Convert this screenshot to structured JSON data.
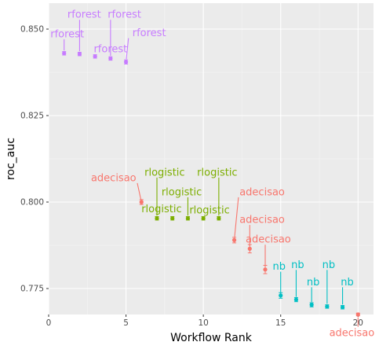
{
  "chart_data": {
    "type": "scatter",
    "title": "",
    "xlabel": "Workflow Rank",
    "ylabel": "roc_auc",
    "xlim": [
      0,
      21
    ],
    "ylim": [
      0.7675,
      0.8575
    ],
    "grid": true,
    "legend": "none",
    "x_ticks": [
      0,
      5,
      10,
      15,
      20
    ],
    "y_ticks": [
      0.775,
      0.8,
      0.825,
      0.85
    ],
    "y_tick_labels": [
      "0.775",
      "0.800",
      "0.825",
      "0.850"
    ],
    "colors": {
      "rforest": "#C77CFF",
      "rlogistic": "#7CAE00",
      "adecisao": "#F8766D",
      "nb": "#00BFC4"
    },
    "points": [
      {
        "rank": 1,
        "roc_auc": 0.843,
        "se": 0.0005,
        "model": "rforest"
      },
      {
        "rank": 2,
        "roc_auc": 0.8428,
        "se": 0.0005,
        "model": "rforest"
      },
      {
        "rank": 3,
        "roc_auc": 0.8421,
        "se": 0.0005,
        "model": "rforest"
      },
      {
        "rank": 4,
        "roc_auc": 0.8415,
        "se": 0.0005,
        "model": "rforest"
      },
      {
        "rank": 5,
        "roc_auc": 0.8405,
        "se": 0.0006,
        "model": "rforest"
      },
      {
        "rank": 6,
        "roc_auc": 0.8,
        "se": 0.0007,
        "model": "adecisao"
      },
      {
        "rank": 7,
        "roc_auc": 0.7953,
        "se": 0.0005,
        "model": "rlogistic"
      },
      {
        "rank": 8,
        "roc_auc": 0.7953,
        "se": 0.0005,
        "model": "rlogistic"
      },
      {
        "rank": 9,
        "roc_auc": 0.7953,
        "se": 0.0005,
        "model": "rlogistic"
      },
      {
        "rank": 10,
        "roc_auc": 0.7953,
        "se": 0.0005,
        "model": "rlogistic"
      },
      {
        "rank": 11,
        "roc_auc": 0.7953,
        "se": 0.0005,
        "model": "rlogistic"
      },
      {
        "rank": 12,
        "roc_auc": 0.789,
        "se": 0.0008,
        "model": "adecisao"
      },
      {
        "rank": 13,
        "roc_auc": 0.7865,
        "se": 0.0012,
        "model": "adecisao"
      },
      {
        "rank": 14,
        "roc_auc": 0.7805,
        "se": 0.0012,
        "model": "adecisao"
      },
      {
        "rank": 15,
        "roc_auc": 0.773,
        "se": 0.0008,
        "model": "nb"
      },
      {
        "rank": 16,
        "roc_auc": 0.7718,
        "se": 0.0006,
        "model": "nb"
      },
      {
        "rank": 17,
        "roc_auc": 0.7703,
        "se": 0.0006,
        "model": "nb"
      },
      {
        "rank": 18,
        "roc_auc": 0.7698,
        "se": 0.0005,
        "model": "nb"
      },
      {
        "rank": 19,
        "roc_auc": 0.7696,
        "se": 0.0005,
        "model": "nb"
      },
      {
        "rank": 20,
        "roc_auc": 0.7675,
        "se": 0.0004,
        "model": "adecisao"
      }
    ],
    "labels": [
      {
        "text": "rforest",
        "rank": 1,
        "x": 1.2,
        "y": 0.8487,
        "color": "rforest"
      },
      {
        "text": "rforest",
        "rank": 2,
        "x": 2.3,
        "y": 0.8543,
        "color": "rforest"
      },
      {
        "text": "rforest",
        "rank": 3,
        "x": 4.0,
        "y": 0.8443,
        "color": "rforest"
      },
      {
        "text": "rforest",
        "rank": 4,
        "x": 4.9,
        "y": 0.8543,
        "color": "rforest"
      },
      {
        "text": "rforest",
        "rank": 5,
        "x": 6.5,
        "y": 0.849,
        "color": "rforest"
      },
      {
        "text": "adecisao",
        "rank": 6,
        "x": 4.2,
        "y": 0.8071,
        "color": "adecisao"
      },
      {
        "text": "rlogistic",
        "rank": 7,
        "x": 7.5,
        "y": 0.8087,
        "color": "rlogistic"
      },
      {
        "text": "rlogistic",
        "rank": 8,
        "x": 7.3,
        "y": 0.7981,
        "color": "rlogistic"
      },
      {
        "text": "rlogistic",
        "rank": 9,
        "x": 8.6,
        "y": 0.803,
        "color": "rlogistic"
      },
      {
        "text": "rlogistic",
        "rank": 10,
        "x": 10.4,
        "y": 0.7977,
        "color": "rlogistic"
      },
      {
        "text": "rlogistic",
        "rank": 11,
        "x": 10.9,
        "y": 0.8087,
        "color": "rlogistic"
      },
      {
        "text": "adecisao",
        "rank": 12,
        "x": 13.8,
        "y": 0.803,
        "color": "adecisao"
      },
      {
        "text": "adecisao",
        "rank": 13,
        "x": 13.8,
        "y": 0.795,
        "color": "adecisao"
      },
      {
        "text": "adecisao",
        "rank": 14,
        "x": 14.2,
        "y": 0.7893,
        "color": "adecisao"
      },
      {
        "text": "nb",
        "rank": 15,
        "x": 14.9,
        "y": 0.7815,
        "color": "nb"
      },
      {
        "text": "nb",
        "rank": 16,
        "x": 16.1,
        "y": 0.782,
        "color": "nb"
      },
      {
        "text": "nb",
        "rank": 17,
        "x": 17.1,
        "y": 0.777,
        "color": "nb"
      },
      {
        "text": "nb",
        "rank": 18,
        "x": 18.1,
        "y": 0.782,
        "color": "nb"
      },
      {
        "text": "nb",
        "rank": 19,
        "x": 19.3,
        "y": 0.777,
        "color": "nb"
      },
      {
        "text": "adecisao",
        "rank": 20,
        "x": 19.6,
        "y": 0.7623,
        "color": "adecisao"
      }
    ]
  }
}
